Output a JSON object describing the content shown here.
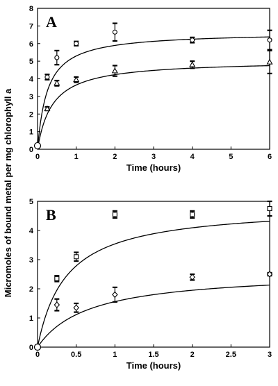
{
  "figure": {
    "ylabel": "Micromoles of bound metal per mg chlorophyll a"
  },
  "chart_data": [
    {
      "type": "scatter",
      "panel_label": "A",
      "xlabel": "Time (hours)",
      "xlim": [
        0,
        6
      ],
      "ylim": [
        0,
        8
      ],
      "xticks": [
        "0",
        "1",
        "2",
        "3",
        "4",
        "5",
        "6"
      ],
      "yticks": [
        "0",
        "1",
        "2",
        "3",
        "4",
        "5",
        "6",
        "7",
        "8"
      ],
      "grid": false,
      "series": [
        {
          "marker": "circle",
          "x": [
            0.25,
            0.5,
            1,
            2,
            4,
            6
          ],
          "y": [
            4.1,
            5.2,
            6.0,
            6.65,
            6.2,
            6.2
          ],
          "err": [
            0.15,
            0.4,
            0.12,
            0.5,
            0.15,
            0.55
          ],
          "fit": {
            "ymax": 6.65,
            "k": 3.9
          }
        },
        {
          "marker": "triangle",
          "x": [
            0.25,
            0.5,
            1,
            2,
            4,
            6
          ],
          "y": [
            2.3,
            3.75,
            3.95,
            4.45,
            4.8,
            4.95
          ],
          "err": [
            0.1,
            0.15,
            0.15,
            0.3,
            0.2,
            0.65
          ],
          "fit": {
            "ymax": 5.05,
            "k": 2.6
          }
        }
      ],
      "origin_point": {
        "x": 0,
        "y": 0.2
      }
    },
    {
      "type": "scatter",
      "panel_label": "B",
      "xlabel": "Time (hours)",
      "xlim": [
        0,
        3
      ],
      "ylim": [
        0,
        5
      ],
      "xticks": [
        "0",
        "0.5",
        "1",
        "1.5",
        "2",
        "2.5",
        "3"
      ],
      "yticks": [
        "0",
        "1",
        "2",
        "3",
        "4",
        "5"
      ],
      "grid": false,
      "series": [
        {
          "marker": "square",
          "x": [
            0.25,
            0.5,
            1,
            2,
            3
          ],
          "y": [
            2.35,
            3.1,
            4.55,
            4.55,
            4.75
          ],
          "err": [
            0.1,
            0.15,
            0.12,
            0.12,
            0.25
          ],
          "fit": {
            "ymax": 4.85,
            "k": 2.7
          }
        },
        {
          "marker": "diamond",
          "x": [
            0.25,
            0.5,
            1,
            2,
            3
          ],
          "y": [
            1.45,
            1.35,
            1.8,
            2.4,
            2.5
          ],
          "err": [
            0.2,
            0.15,
            0.25,
            0.1,
            0.05
          ],
          "fit": {
            "ymax": 2.6,
            "k": 1.5
          }
        }
      ],
      "origin_point": {
        "x": 0,
        "y": 0
      }
    }
  ]
}
